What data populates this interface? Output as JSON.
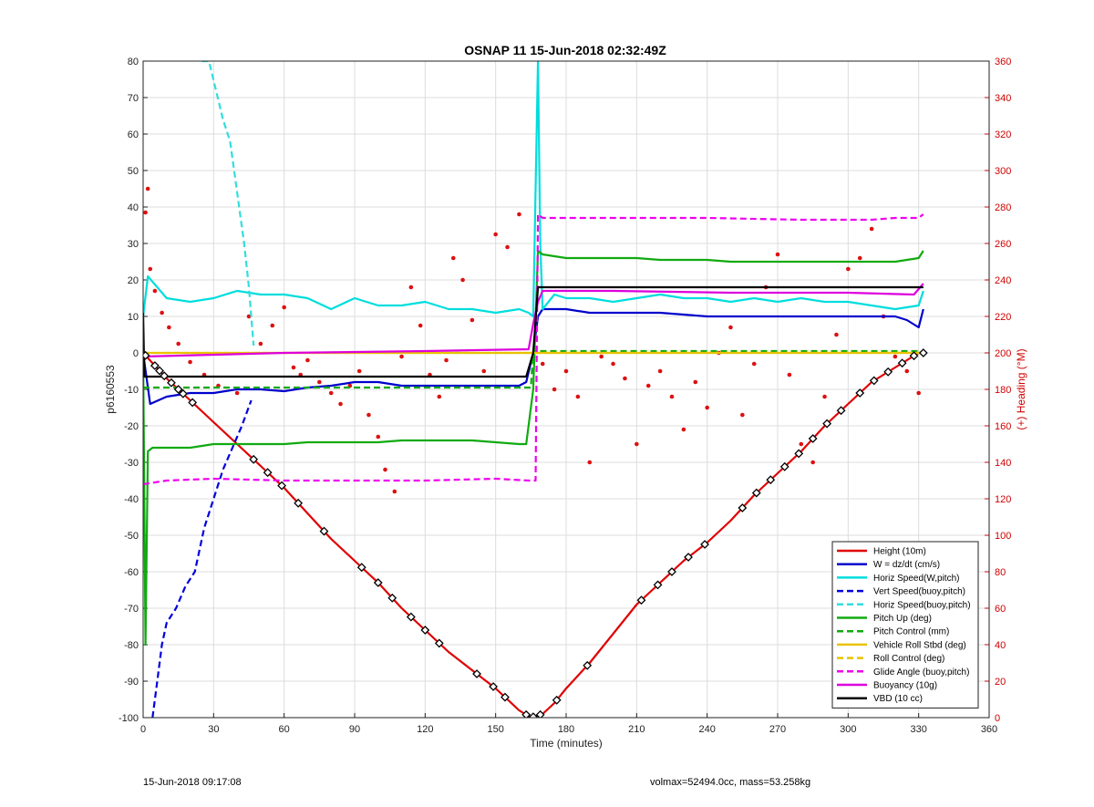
{
  "footer": {
    "left": "15-Jun-2018 09:17:08",
    "right": "volmax=52494.0cc, mass=53.258kg"
  },
  "chart_data": {
    "type": "line",
    "title": "OSNAP 11 15-Jun-2018 02:32:49Z",
    "xlabel": "Time (minutes)",
    "ylabel": "p6160553",
    "ylabel_right": "(+) Heading (°M)",
    "xlim": [
      0,
      360
    ],
    "ylim": [
      -100,
      80
    ],
    "ylim_right": [
      0,
      360
    ],
    "xticks": [
      0,
      30,
      60,
      90,
      120,
      150,
      180,
      210,
      240,
      270,
      300,
      330,
      360
    ],
    "yticks": [
      -100,
      -90,
      -80,
      -70,
      -60,
      -50,
      -40,
      -30,
      -20,
      -10,
      0,
      10,
      20,
      30,
      40,
      50,
      60,
      70,
      80
    ],
    "yticks_right": [
      0,
      20,
      40,
      60,
      80,
      100,
      120,
      140,
      160,
      180,
      200,
      220,
      240,
      260,
      280,
      300,
      320,
      340,
      360
    ],
    "grid": true,
    "legend_position": "bottom-right",
    "series": [
      {
        "name": "Height (10m)",
        "color": "#e00000",
        "style": "solid",
        "axis": "left",
        "x": [
          0,
          10,
          20,
          30,
          40,
          50,
          60,
          70,
          80,
          90,
          100,
          110,
          120,
          130,
          140,
          150,
          160,
          165,
          170,
          175,
          180,
          190,
          200,
          210,
          220,
          230,
          240,
          250,
          260,
          270,
          280,
          290,
          300,
          310,
          320,
          330,
          332
        ],
        "y": [
          0,
          -7,
          -13,
          -19,
          -25,
          -31,
          -37,
          -44,
          -51,
          -57,
          -63,
          -70,
          -76,
          -82,
          -87,
          -92,
          -98,
          -100,
          -99,
          -96,
          -92,
          -85,
          -77,
          -69,
          -63,
          -57,
          -52,
          -46,
          -39,
          -33,
          -27,
          -20,
          -14,
          -8,
          -4,
          0,
          0
        ]
      },
      {
        "name": "W = dz/dt (cm/s)",
        "color": "#0000cc",
        "style": "solid",
        "axis": "left",
        "x": [
          0,
          3,
          10,
          20,
          30,
          40,
          50,
          60,
          70,
          80,
          90,
          100,
          110,
          120,
          130,
          140,
          150,
          160,
          163,
          166,
          168,
          170,
          180,
          190,
          200,
          210,
          220,
          230,
          240,
          250,
          260,
          270,
          280,
          290,
          300,
          310,
          320,
          325,
          330,
          332
        ],
        "y": [
          0,
          -14,
          -12,
          -11,
          -11,
          -10,
          -10,
          -10.5,
          -9.5,
          -9,
          -8,
          -8,
          -9,
          -9,
          -9,
          -9,
          -9,
          -9,
          -8,
          0,
          10,
          12,
          12,
          11,
          11,
          11,
          11,
          10.5,
          10,
          10,
          10,
          10,
          10,
          10,
          10,
          10,
          10,
          9,
          7,
          12
        ]
      },
      {
        "name": "Horiz Speed(W,pitch)",
        "color": "#00dddd",
        "style": "solid",
        "axis": "left",
        "x": [
          0,
          2,
          10,
          20,
          30,
          40,
          50,
          60,
          70,
          80,
          90,
          100,
          110,
          120,
          130,
          140,
          150,
          160,
          164,
          166,
          168,
          169,
          170,
          175,
          180,
          190,
          200,
          210,
          220,
          230,
          240,
          250,
          260,
          270,
          280,
          290,
          300,
          310,
          320,
          330,
          332
        ],
        "y": [
          10,
          21,
          15,
          14,
          15,
          17,
          16,
          16,
          15,
          12,
          15,
          13,
          13,
          14,
          12,
          12,
          11,
          12,
          11,
          10,
          80,
          30,
          12,
          16,
          15,
          15,
          14,
          15,
          16,
          15,
          15,
          14,
          15,
          14,
          15,
          14,
          14,
          13,
          12,
          13,
          17
        ]
      },
      {
        "name": "Vert Speed(buoy,pitch)",
        "color": "#0000dd",
        "style": "dashed",
        "axis": "left",
        "x": [
          4,
          6,
          8,
          10,
          14,
          18,
          22,
          26,
          30,
          34,
          38,
          42,
          46
        ],
        "y": [
          -100,
          -90,
          -80,
          -74,
          -70,
          -64,
          -60,
          -48,
          -40,
          -32,
          -26,
          -20,
          -13
        ]
      },
      {
        "name": "Horiz Speed(buoy,pitch)",
        "color": "#33dddd",
        "style": "dashed",
        "axis": "left",
        "x": [
          25,
          28,
          31,
          34,
          37,
          40,
          43,
          45,
          47
        ],
        "y": [
          80,
          80,
          72,
          64,
          58,
          44,
          30,
          18,
          2
        ]
      },
      {
        "name": "Pitch Up (deg)",
        "color": "#11aa11",
        "style": "solid",
        "axis": "left",
        "x": [
          0,
          1,
          2,
          4,
          10,
          20,
          30,
          40,
          50,
          60,
          70,
          80,
          90,
          100,
          110,
          120,
          130,
          140,
          150,
          160,
          163,
          166,
          168,
          170,
          180,
          190,
          200,
          210,
          220,
          230,
          240,
          250,
          260,
          270,
          280,
          290,
          300,
          310,
          320,
          330,
          332
        ],
        "y": [
          0,
          -80,
          -27,
          -26,
          -26,
          -26,
          -25,
          -25,
          -25,
          -25,
          -24.5,
          -24.5,
          -24.5,
          -24.5,
          -24,
          -24,
          -24,
          -24,
          -24.5,
          -25,
          -25,
          -10,
          28,
          27,
          26,
          26,
          26,
          26,
          25.5,
          25.5,
          25.5,
          25,
          25,
          25,
          25,
          25,
          25,
          25,
          25,
          26,
          28
        ]
      },
      {
        "name": "Pitch Control (mm)",
        "color": "#11aa11",
        "style": "dashed",
        "axis": "left",
        "x": [
          0,
          160,
          165,
          166,
          332
        ],
        "y": [
          -9.5,
          -9.5,
          -9.5,
          0.5,
          0.5
        ]
      },
      {
        "name": "Vehicle Roll Stbd (deg)",
        "color": "#e8c200",
        "style": "solid",
        "axis": "left",
        "x": [
          0,
          332
        ],
        "y": [
          0,
          0
        ]
      },
      {
        "name": "Roll Control (deg)",
        "color": "#e8c200",
        "style": "dashed",
        "axis": "left",
        "x": [
          0,
          332
        ],
        "y": [
          0,
          0
        ]
      },
      {
        "name": "Glide Angle (buoy,pitch)",
        "color": "#ee00ee",
        "style": "dashed",
        "axis": "left",
        "x": [
          0,
          10,
          30,
          60,
          90,
          120,
          150,
          164,
          167,
          168,
          170,
          200,
          240,
          280,
          310,
          320,
          330,
          332
        ],
        "y": [
          -36,
          -35,
          -34.5,
          -35,
          -35,
          -35,
          -34.5,
          -35,
          -35,
          38,
          37,
          37,
          37,
          36.5,
          36.5,
          37,
          37,
          38
        ]
      },
      {
        "name": "Buoyancy (10g)",
        "color": "#dd00dd",
        "style": "solid",
        "axis": "left",
        "x": [
          0,
          60,
          120,
          164,
          166,
          168,
          170,
          200,
          250,
          300,
          328,
          332
        ],
        "y": [
          -1,
          0,
          0.5,
          1,
          8,
          14,
          17,
          17,
          16.5,
          16.5,
          16,
          19
        ]
      },
      {
        "name": "VBD (10 cc)",
        "color": "#000000",
        "style": "solid",
        "axis": "left",
        "x": [
          0,
          0.5,
          1,
          163,
          166,
          168,
          170,
          330,
          332
        ],
        "y": [
          11,
          -6.5,
          -6.5,
          -6.5,
          0,
          18,
          18,
          18,
          18
        ]
      }
    ],
    "heading_points": {
      "axis": "right",
      "color": "#dd1111",
      "x": [
        1,
        2,
        3,
        5,
        8,
        11,
        15,
        20,
        26,
        32,
        40,
        45,
        50,
        55,
        60,
        64,
        67,
        70,
        75,
        80,
        84,
        88,
        92,
        96,
        100,
        103,
        107,
        110,
        114,
        118,
        122,
        126,
        129,
        132,
        136,
        140,
        145,
        150,
        155,
        160,
        170,
        175,
        180,
        185,
        190,
        195,
        200,
        205,
        210,
        215,
        220,
        225,
        230,
        235,
        240,
        245,
        250,
        255,
        260,
        265,
        270,
        275,
        280,
        285,
        290,
        295,
        300,
        305,
        310,
        315,
        320,
        325,
        330
      ],
      "y": [
        277,
        290,
        246,
        234,
        222,
        214,
        205,
        195,
        188,
        182,
        178,
        220,
        205,
        215,
        225,
        192,
        188,
        196,
        184,
        178,
        172,
        182,
        190,
        166,
        154,
        136,
        124,
        198,
        236,
        215,
        188,
        176,
        196,
        252,
        240,
        218,
        190,
        265,
        258,
        276,
        194,
        180,
        190,
        176,
        140,
        198,
        194,
        186,
        150,
        182,
        190,
        176,
        158,
        184,
        170,
        200,
        214,
        166,
        194,
        236,
        254,
        188,
        150,
        140,
        176,
        210,
        246,
        252,
        268,
        220,
        198,
        190,
        178
      ]
    },
    "depth_markers": {
      "axis": "left",
      "x": [
        1,
        5,
        7,
        9,
        12,
        15,
        17,
        21,
        47,
        53,
        59,
        66,
        77,
        93,
        100,
        106,
        114,
        120,
        126,
        142,
        149,
        154,
        163,
        166,
        169,
        176,
        189,
        212,
        219,
        225,
        232,
        239,
        255,
        261,
        267,
        273,
        279,
        285,
        291,
        297,
        305,
        311,
        317,
        323,
        328,
        332
      ]
    },
    "legend": [
      "Height (10m)",
      "W = dz/dt (cm/s)",
      "Horiz Speed(W,pitch)",
      "Vert Speed(buoy,pitch)",
      "Horiz Speed(buoy,pitch)",
      "Pitch Up (deg)",
      "Pitch Control (mm)",
      "Vehicle Roll Stbd (deg)",
      "Roll Control (deg)",
      "Glide Angle (buoy,pitch)",
      "Buoyancy (10g)",
      "VBD (10 cc)"
    ]
  }
}
